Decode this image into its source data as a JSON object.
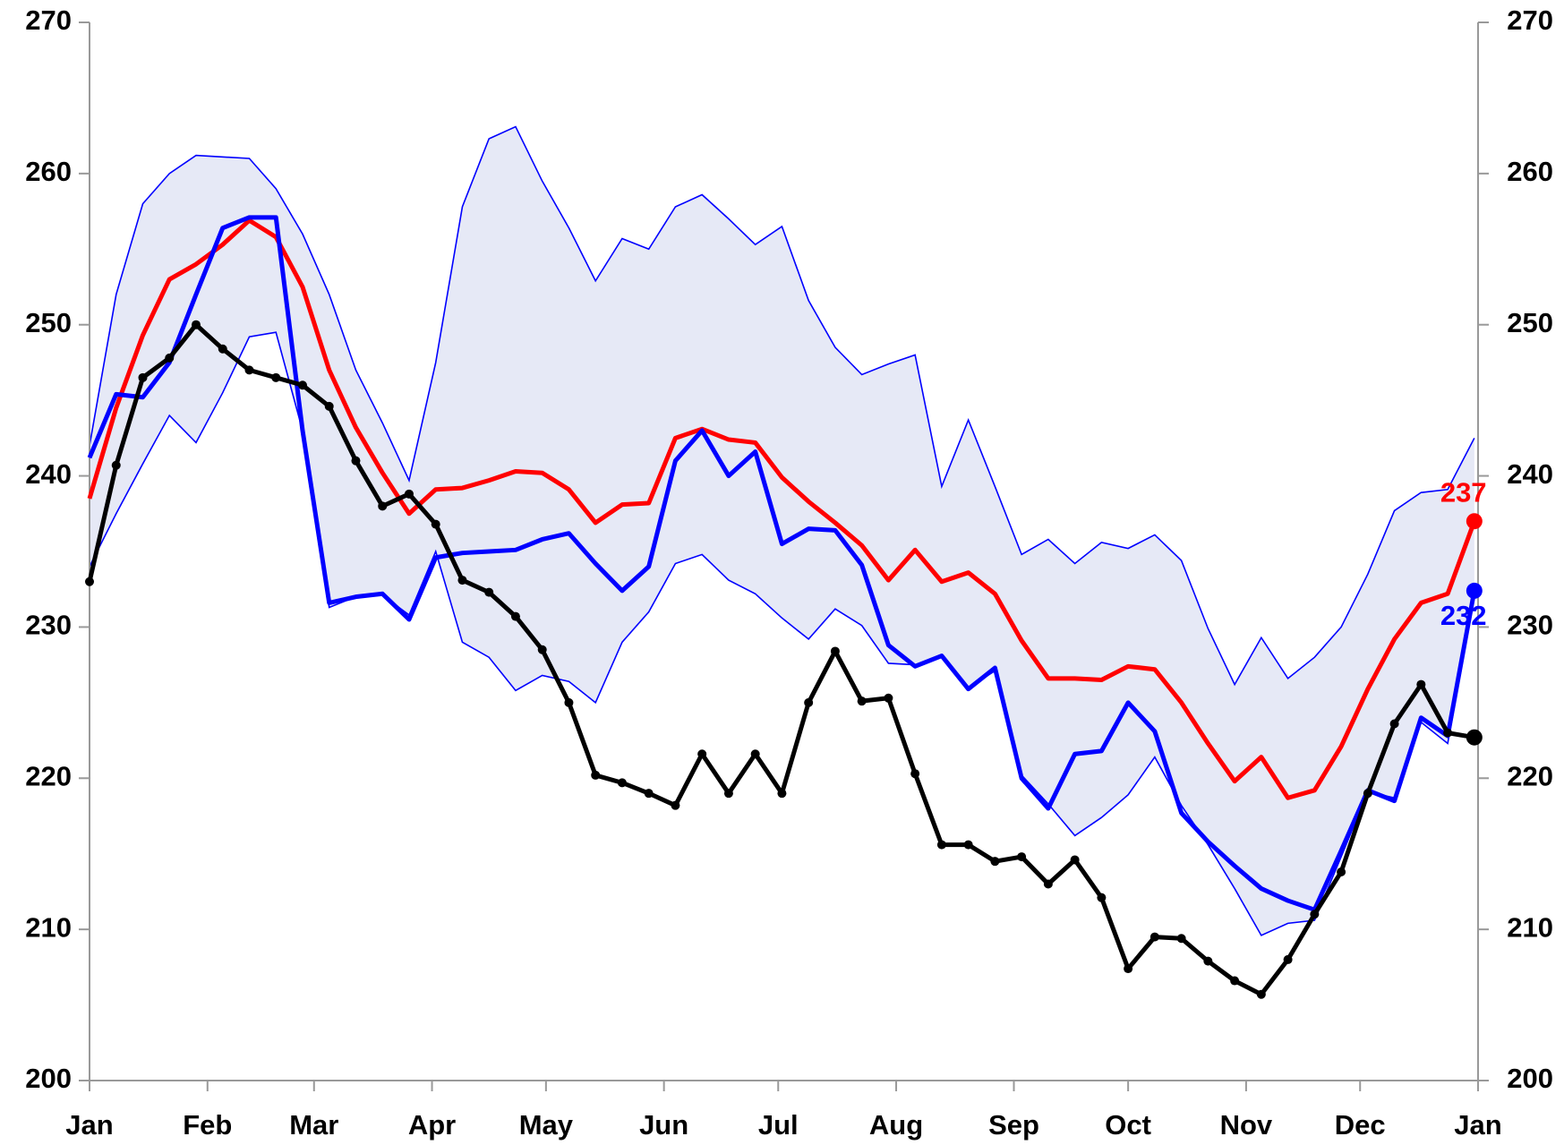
{
  "chart_data": {
    "type": "line",
    "x": [
      0,
      1,
      2,
      3,
      4,
      5,
      6,
      7,
      8,
      9,
      10,
      11,
      12,
      13,
      14,
      15,
      16,
      17,
      18,
      19,
      20,
      21,
      22,
      23,
      24,
      25,
      26,
      27,
      28,
      29,
      30,
      31,
      32,
      33,
      34,
      35,
      36,
      37,
      38,
      39,
      40,
      41,
      42,
      43,
      44,
      45,
      46,
      47,
      48,
      49,
      50,
      51,
      52
    ],
    "xlim": [
      0,
      52.14
    ],
    "xticks": [
      {
        "value": 0,
        "label": "Jan"
      },
      {
        "value": 4.43,
        "label": "Feb"
      },
      {
        "value": 8.43,
        "label": "Mar"
      },
      {
        "value": 12.86,
        "label": "Apr"
      },
      {
        "value": 17.14,
        "label": "May"
      },
      {
        "value": 21.57,
        "label": "Jun"
      },
      {
        "value": 25.86,
        "label": "Jul"
      },
      {
        "value": 30.29,
        "label": "Aug"
      },
      {
        "value": 34.71,
        "label": "Sep"
      },
      {
        "value": 39,
        "label": "Oct"
      },
      {
        "value": 43.43,
        "label": "Nov"
      },
      {
        "value": 47.71,
        "label": "Dec"
      },
      {
        "value": 52.14,
        "label": "Jan"
      }
    ],
    "ylim": [
      200,
      270
    ],
    "yticks": [
      200,
      210,
      220,
      230,
      240,
      250,
      260,
      270
    ],
    "y2lim": [
      200,
      270
    ],
    "y2ticks": [
      200,
      210,
      220,
      230,
      240,
      250,
      260,
      270
    ],
    "band": {
      "color": "#0000ff",
      "fill": "#e6e9f6",
      "upper": [
        242,
        252,
        258,
        260,
        261.2,
        261.1,
        261,
        259,
        256,
        252,
        247,
        243.5,
        239.7,
        247.5,
        257.8,
        262.3,
        263.1,
        259.5,
        256.4,
        252.9,
        255.7,
        255,
        257.8,
        258.6,
        257,
        255.3,
        256.5,
        251.6,
        248.5,
        246.7,
        247.4,
        248,
        239.3,
        243.7,
        239.3,
        234.8,
        235.8,
        234.2,
        235.6,
        235.2,
        236.1,
        234.4,
        229.9,
        226.2,
        229.3,
        226.6,
        228,
        230,
        233.5,
        237.7,
        238.9,
        239.1,
        242.5
      ],
      "lower": [
        234,
        237.5,
        240.8,
        244,
        242.2,
        245.5,
        249.2,
        249.5,
        243,
        231.3,
        232,
        232.1,
        230.8,
        235,
        229,
        228,
        225.8,
        226.8,
        226.4,
        225,
        229,
        231,
        234.2,
        234.8,
        233.1,
        232.2,
        230.6,
        229.2,
        231.2,
        230.1,
        227.6,
        227.5,
        228.1,
        226,
        227.1,
        220.2,
        218.3,
        216.2,
        217.4,
        218.9,
        221.4,
        218.2,
        215.6,
        212.7,
        209.6,
        210.4,
        210.6,
        214.8,
        219.1,
        218.7,
        223.7,
        222.3,
        232
      ]
    },
    "series": [
      {
        "color": "#ff0000",
        "values": [
          238.5,
          244.5,
          249.3,
          253,
          254,
          255.3,
          256.9,
          255.8,
          252.5,
          247,
          243.2,
          240.2,
          237.5,
          239.1,
          239.2,
          239.7,
          240.3,
          240.2,
          239.1,
          236.9,
          238.1,
          238.2,
          242.5,
          243.1,
          242.4,
          242.2,
          239.9,
          238.3,
          236.9,
          235.4,
          233.1,
          235.1,
          233,
          233.6,
          232.2,
          229.1,
          226.6,
          226.6,
          226.5,
          227.4,
          227.2,
          225,
          222.3,
          219.8,
          221.4,
          218.7,
          219.2,
          222.1,
          225.9,
          229.2,
          231.6,
          232.2,
          237
        ],
        "value_labels": [
          null,
          null,
          null,
          null,
          null,
          null,
          null,
          null,
          null,
          null,
          null,
          null,
          null,
          null,
          null,
          null,
          null,
          null,
          null,
          null,
          null,
          null,
          null,
          null,
          null,
          null,
          null,
          null,
          null,
          null,
          null,
          null,
          null,
          null,
          null,
          null,
          null,
          null,
          null,
          null,
          null,
          null,
          null,
          null,
          null,
          null,
          null,
          null,
          null,
          null,
          null,
          null,
          "237"
        ]
      },
      {
        "color": "#0000ff",
        "values": [
          241.2,
          245.4,
          245.2,
          247.5,
          252,
          256.4,
          257.1,
          257.1,
          243,
          231.6,
          232,
          232.2,
          230.5,
          234.6,
          234.9,
          235,
          235.1,
          235.8,
          236.2,
          234.2,
          232.4,
          234,
          241,
          243,
          240,
          241.6,
          235.5,
          236.5,
          236.4,
          234.1,
          228.8,
          227.4,
          228.1,
          225.9,
          227.3,
          220,
          218,
          221.6,
          221.8,
          225,
          223.1,
          217.7,
          215.8,
          214.2,
          212.7,
          211.9,
          211.3,
          215.2,
          219.2,
          218.5,
          224,
          222.8,
          232.4
        ],
        "value_labels": [
          null,
          null,
          null,
          null,
          null,
          null,
          null,
          null,
          null,
          null,
          null,
          null,
          null,
          null,
          null,
          null,
          null,
          null,
          null,
          null,
          null,
          null,
          null,
          null,
          null,
          null,
          null,
          null,
          null,
          null,
          null,
          null,
          null,
          null,
          null,
          null,
          null,
          null,
          null,
          null,
          null,
          null,
          null,
          null,
          null,
          null,
          null,
          null,
          null,
          null,
          null,
          null,
          "232"
        ]
      },
      {
        "color": "#000000",
        "markers": true,
        "values": [
          233,
          240.7,
          246.5,
          247.8,
          250,
          248.4,
          247,
          246.5,
          246,
          244.6,
          241,
          238,
          238.8,
          236.8,
          233.1,
          232.3,
          230.7,
          228.5,
          225,
          220.2,
          219.7,
          219,
          218.2,
          221.6,
          219,
          221.6,
          219,
          225,
          228.4,
          225.1,
          225.3,
          220.3,
          215.6,
          215.6,
          214.5,
          214.8,
          213,
          214.6,
          212.1,
          207.4,
          209.5,
          209.4,
          207.9,
          206.6,
          205.7,
          208,
          211,
          213.8,
          219,
          223.6,
          226.2,
          223,
          222.7
        ]
      }
    ]
  }
}
